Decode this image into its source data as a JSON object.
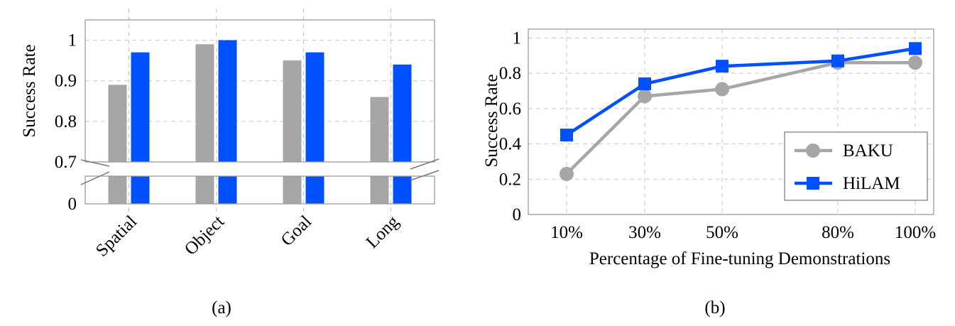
{
  "colors": {
    "gray": "#a6a6a6",
    "blue": "#0050ff",
    "grid": "#c8c8c8",
    "frame": "#9a9a9a"
  },
  "chart_data": [
    {
      "type": "bar",
      "caption": "(a)",
      "ylabel": "Success Rate",
      "categories": [
        "Spatial",
        "Object",
        "Goal",
        "Long"
      ],
      "series": [
        {
          "color": "gray",
          "values": [
            0.89,
            0.99,
            0.95,
            0.86
          ]
        },
        {
          "color": "blue",
          "values": [
            0.97,
            1.0,
            0.97,
            0.94
          ]
        }
      ],
      "ylim": [
        0.7,
        1.05
      ],
      "yticks": [
        "0.7",
        "0.8",
        "0.9",
        "1"
      ],
      "broken_axis": true,
      "lower_tick": "0",
      "grid": true
    },
    {
      "type": "line",
      "caption": "(b)",
      "xlabel": "Percentage of Fine-tuning Demonstrations",
      "ylabel": "Success Rate",
      "x": [
        10,
        30,
        50,
        80,
        100
      ],
      "xticks": [
        "10%",
        "30%",
        "50%",
        "80%",
        "100%"
      ],
      "series": [
        {
          "name": "BAKU",
          "color": "gray",
          "marker": "circle",
          "values": [
            0.23,
            0.67,
            0.71,
            0.86,
            0.86
          ]
        },
        {
          "name": "HiLAM",
          "color": "blue",
          "marker": "square",
          "values": [
            0.45,
            0.74,
            0.84,
            0.87,
            0.94
          ]
        }
      ],
      "ylim": [
        0,
        1.05
      ],
      "yticks": [
        "0",
        "0.2",
        "0.4",
        "0.6",
        "0.8",
        "1"
      ],
      "legend_position": "bottom-right",
      "grid": true
    }
  ]
}
